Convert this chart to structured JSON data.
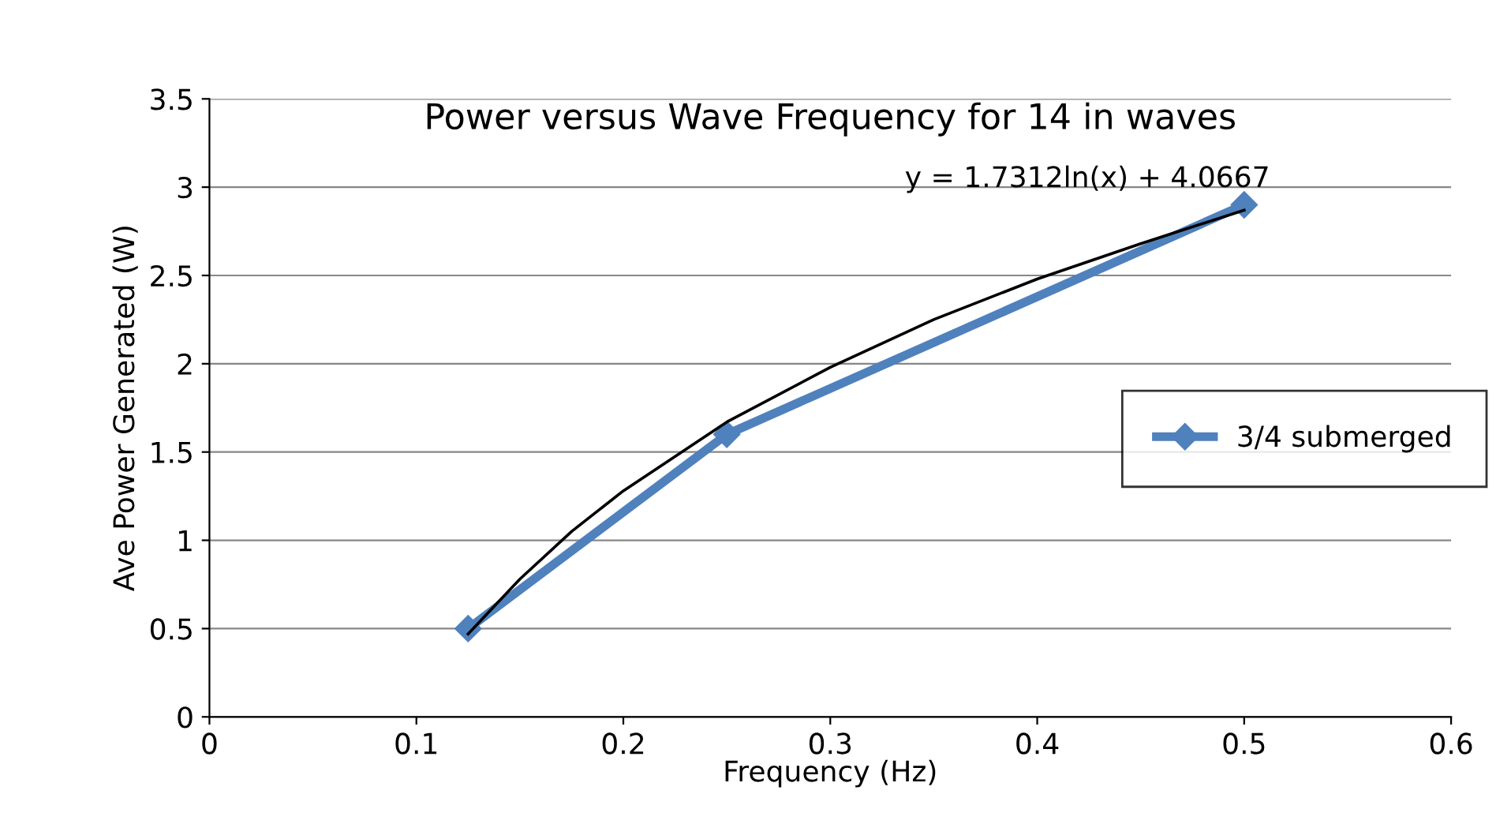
{
  "chart_data": {
    "type": "line",
    "title": "Power versus Wave Frequency for 14 in waves",
    "xlabel": "Frequency (Hz)",
    "ylabel": "Ave Power Generated (W)",
    "x": [
      0.125,
      0.25,
      0.5
    ],
    "series": [
      {
        "name": "3/4 submerged",
        "color": "#4f81bd",
        "values": [
          0.5,
          1.6,
          2.9
        ],
        "marker": "diamond"
      },
      {
        "type": "line",
        "color": "#000000",
        "marker": "none",
        "x": [
          0.125,
          0.15,
          0.175,
          0.2,
          0.25,
          0.3,
          0.35,
          0.4,
          0.45,
          0.5
        ],
        "values": [
          0.47,
          0.78,
          1.05,
          1.28,
          1.67,
          1.98,
          2.25,
          2.48,
          2.68,
          2.87
        ]
      }
    ],
    "annotations": [
      "y = 1.7312ln(x) + 4.0667"
    ],
    "xlim": [
      0,
      0.6
    ],
    "xticks": [
      0,
      0.1,
      0.2,
      0.3,
      0.4,
      0.5,
      0.6
    ],
    "ylim": [
      0,
      3.5
    ],
    "yticks": [
      0,
      0.5,
      1,
      1.5,
      2,
      2.5,
      3,
      3.5
    ],
    "grid": "y",
    "legend": "right"
  }
}
